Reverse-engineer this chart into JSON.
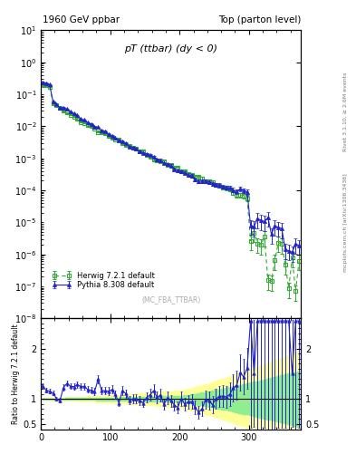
{
  "title_left": "1960 GeV ppbar",
  "title_right": "Top (parton level)",
  "plot_title": "pT (ttbar) (dy < 0)",
  "watermark": "(MC_FBA_TTBAR)",
  "right_label_top": "Rivet 3.1.10, ≥ 2.6M events",
  "right_label_bottom": "mcplots.cern.ch [arXiv:1306.3436]",
  "ylabel_ratio": "Ratio to Herwig 7.2.1 default",
  "legend_herwig": "Herwig 7.2.1 default",
  "legend_pythia": "Pythia 8.308 default",
  "xlim": [
    0,
    375
  ],
  "ylim_main": [
    1e-08,
    10
  ],
  "ylim_ratio": [
    0.4,
    2.6
  ],
  "ratio_yticks": [
    0.5,
    1,
    2
  ],
  "herwig_color": "#33aa33",
  "pythia_color": "#2222cc",
  "band_inner_color": "#90ee90",
  "band_outer_color": "#ffff99",
  "ratio_line_color": "#000000",
  "bg_color": "#ffffff"
}
